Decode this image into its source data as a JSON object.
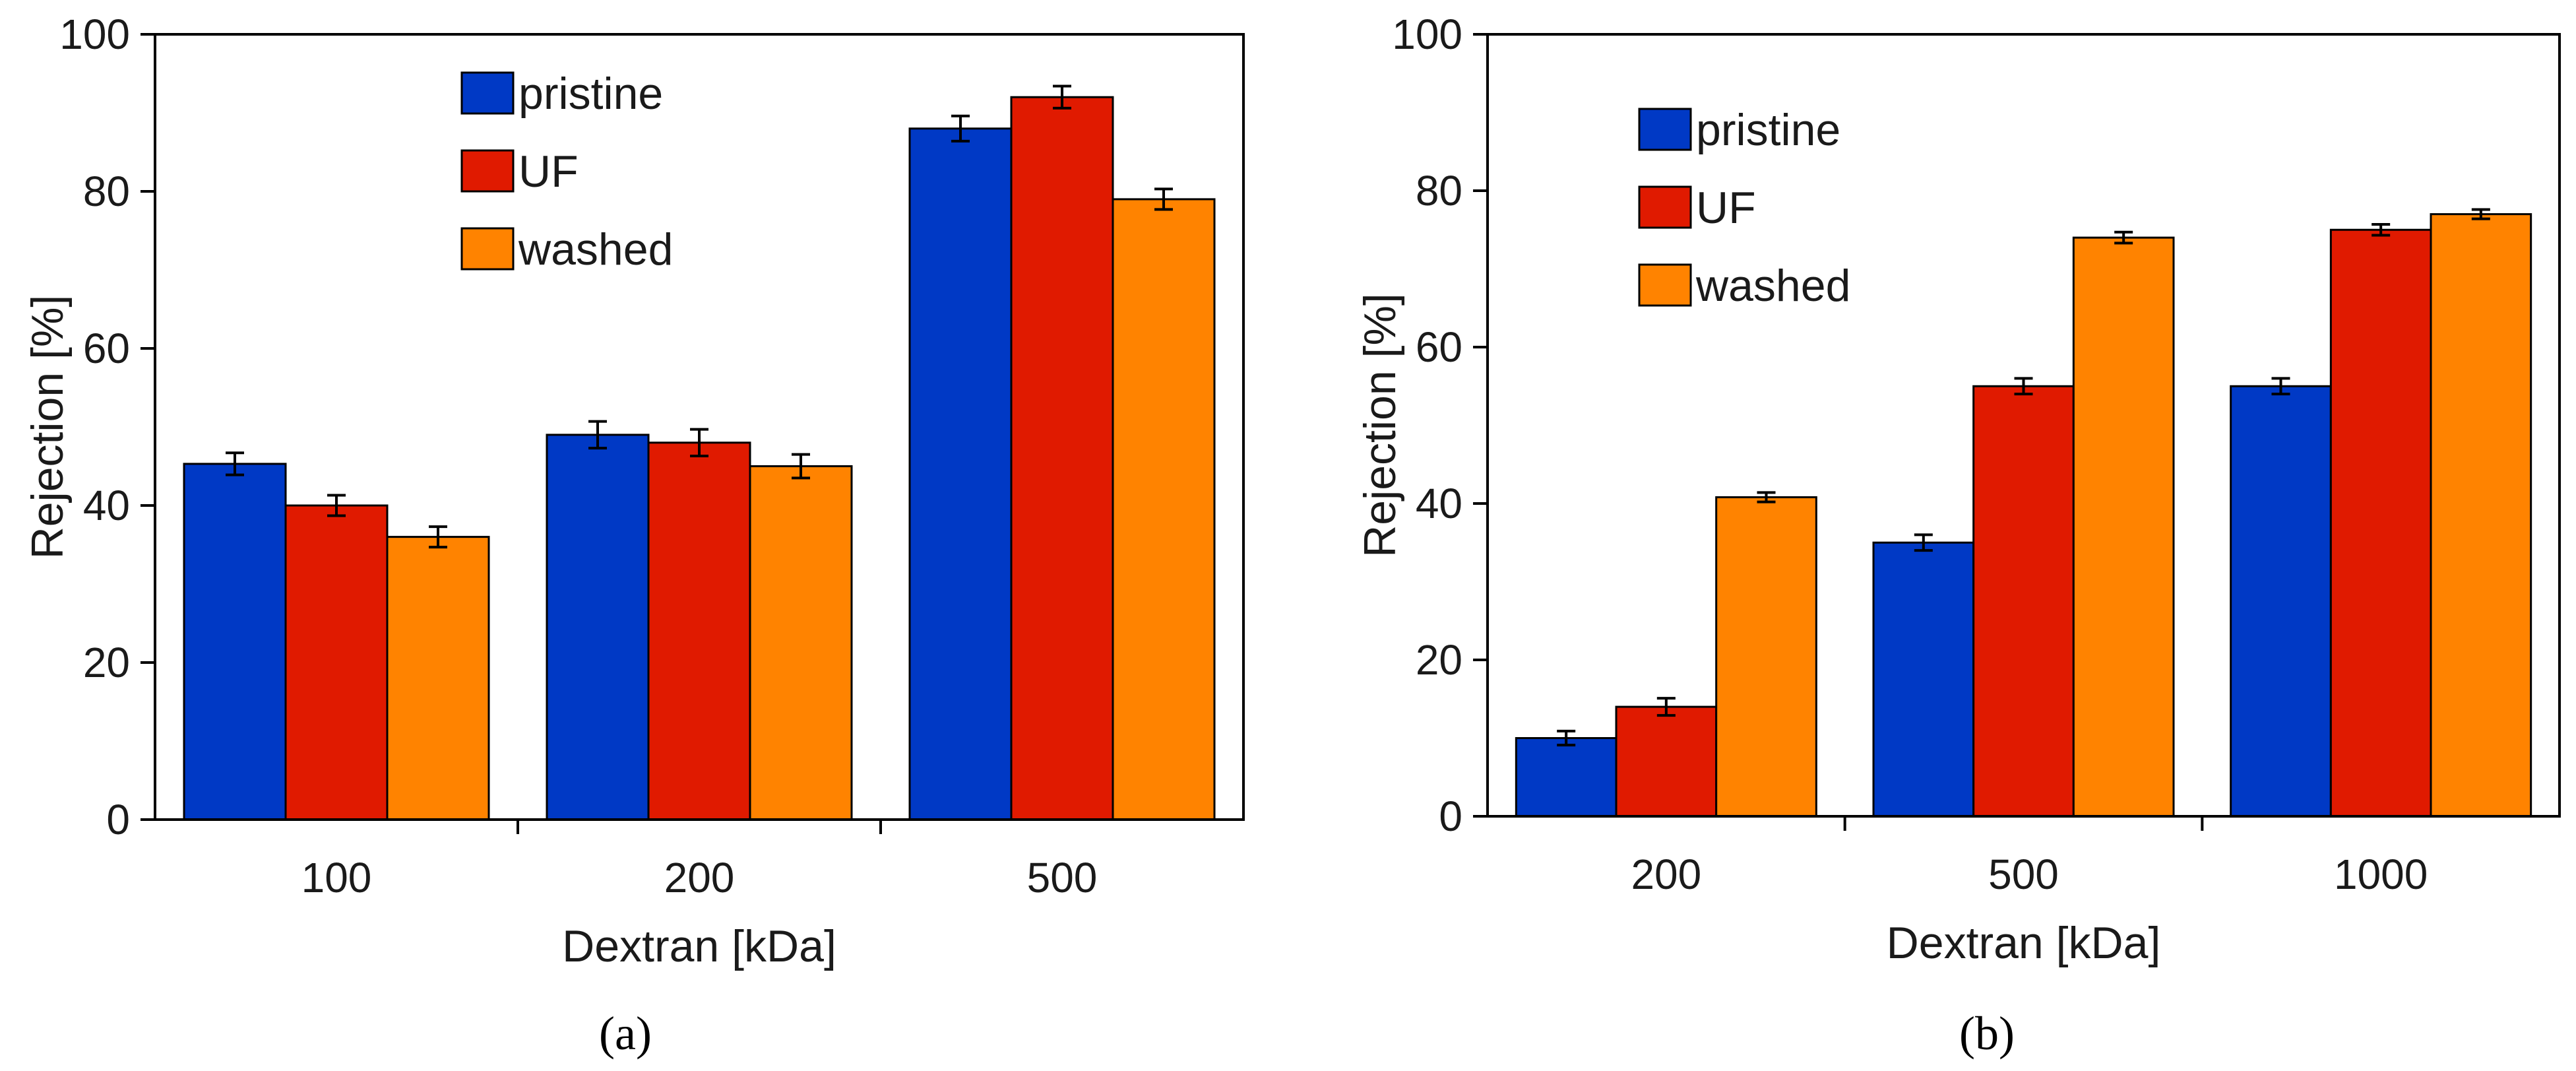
{
  "chart_data": [
    {
      "type": "bar",
      "panel_label": "(a)",
      "categories": [
        "100",
        "200",
        "500"
      ],
      "series": [
        {
          "name": "pristine",
          "values": [
            45.3,
            49,
            88
          ],
          "errors": [
            1.4,
            1.7,
            1.6
          ]
        },
        {
          "name": "UF",
          "values": [
            40,
            48,
            92
          ],
          "errors": [
            1.3,
            1.7,
            1.4
          ]
        },
        {
          "name": "washed",
          "values": [
            36,
            45,
            79
          ],
          "errors": [
            1.3,
            1.5,
            1.3
          ]
        }
      ],
      "xlabel": "Dextran [kDa]",
      "ylabel": "Rejection [%]",
      "ylim": [
        0,
        100
      ],
      "yticks": [
        "0",
        "20",
        "40",
        "60",
        "80",
        "100"
      ],
      "legend": "top-center",
      "grid": false
    },
    {
      "type": "bar",
      "panel_label": "(b)",
      "categories": [
        "200",
        "500",
        "1000"
      ],
      "series": [
        {
          "name": "pristine",
          "values": [
            10,
            35,
            55
          ],
          "errors": [
            0.9,
            1.0,
            1.0
          ]
        },
        {
          "name": "UF",
          "values": [
            14,
            55,
            75
          ],
          "errors": [
            1.1,
            1.0,
            0.7
          ]
        },
        {
          "name": "washed",
          "values": [
            40.8,
            74,
            77
          ],
          "errors": [
            0.6,
            0.7,
            0.6
          ]
        }
      ],
      "xlabel": "Dextran [kDa]",
      "ylabel": "Rejection [%]",
      "ylim": [
        0,
        100
      ],
      "yticks": [
        "0",
        "20",
        "40",
        "60",
        "80",
        "100"
      ],
      "legend": "top-left",
      "grid": false
    }
  ],
  "colors": {
    "pristine": "#0039c5",
    "UF": "#e01a00",
    "washed": "#ff8300"
  }
}
